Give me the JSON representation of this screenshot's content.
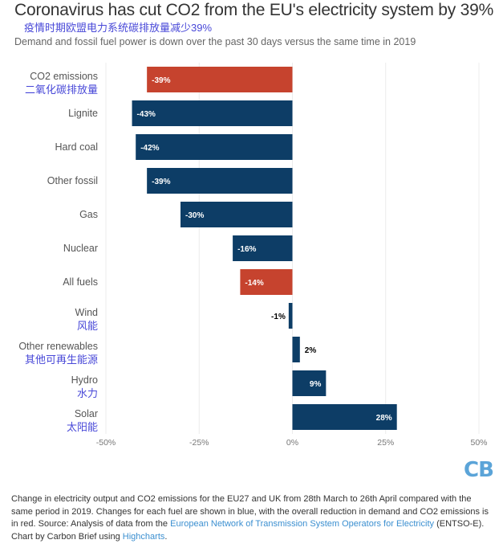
{
  "title": "Coronavirus has cut CO2 from the EU's electricity system by 39%",
  "title_cn": "疫情时期欧盟电力系统碳排放量减少39%",
  "subtitle": "Demand and fossil fuel power is down over the past 30 days versus the same time in 2019",
  "chart_data": {
    "type": "bar",
    "orientation": "horizontal",
    "categories": [
      "CO2 emissions",
      "Lignite",
      "Hard coal",
      "Other fossil",
      "Gas",
      "Nuclear",
      "All fuels",
      "Wind",
      "Other renewables",
      "Hydro",
      "Solar"
    ],
    "category_labels_cn": [
      "二氧化碳排放量",
      "",
      "",
      "",
      "",
      "",
      "",
      "风能",
      "其他可再生能源",
      "水力",
      "太阳能"
    ],
    "values": [
      -39,
      -43,
      -42,
      -39,
      -30,
      -16,
      -14,
      -1,
      2,
      9,
      28
    ],
    "data_labels": [
      "-39%",
      "-43%",
      "-42%",
      "-39%",
      "-30%",
      "-16%",
      "-14%",
      "-1%",
      "2%",
      "9%",
      "28%"
    ],
    "highlight": [
      true,
      false,
      false,
      false,
      false,
      false,
      true,
      false,
      false,
      false,
      false
    ],
    "colors": {
      "fuel": "#0d3d66",
      "total": "#c6432e"
    },
    "xlim": [
      -50,
      50
    ],
    "xticks": [
      -50,
      -25,
      0,
      25,
      50
    ],
    "xtick_labels": [
      "-50%",
      "-25%",
      "0%",
      "25%",
      "50%"
    ],
    "grid": true
  },
  "logo": "CB",
  "caption": {
    "part1": "Change in electricity output and CO2 emissions for the EU27 and UK from 28th March to 26th April compared with the same period in 2019. Changes for each fuel are shown in blue, with the overall reduction in demand and CO2 emissions is in red. Source: Analysis of data from the ",
    "link1": "European Network of Transmission System Operators for Electricity",
    "part2": " (ENTSO-E). Chart by Carbon Brief using ",
    "link2": "Highcharts",
    "part3": "."
  }
}
